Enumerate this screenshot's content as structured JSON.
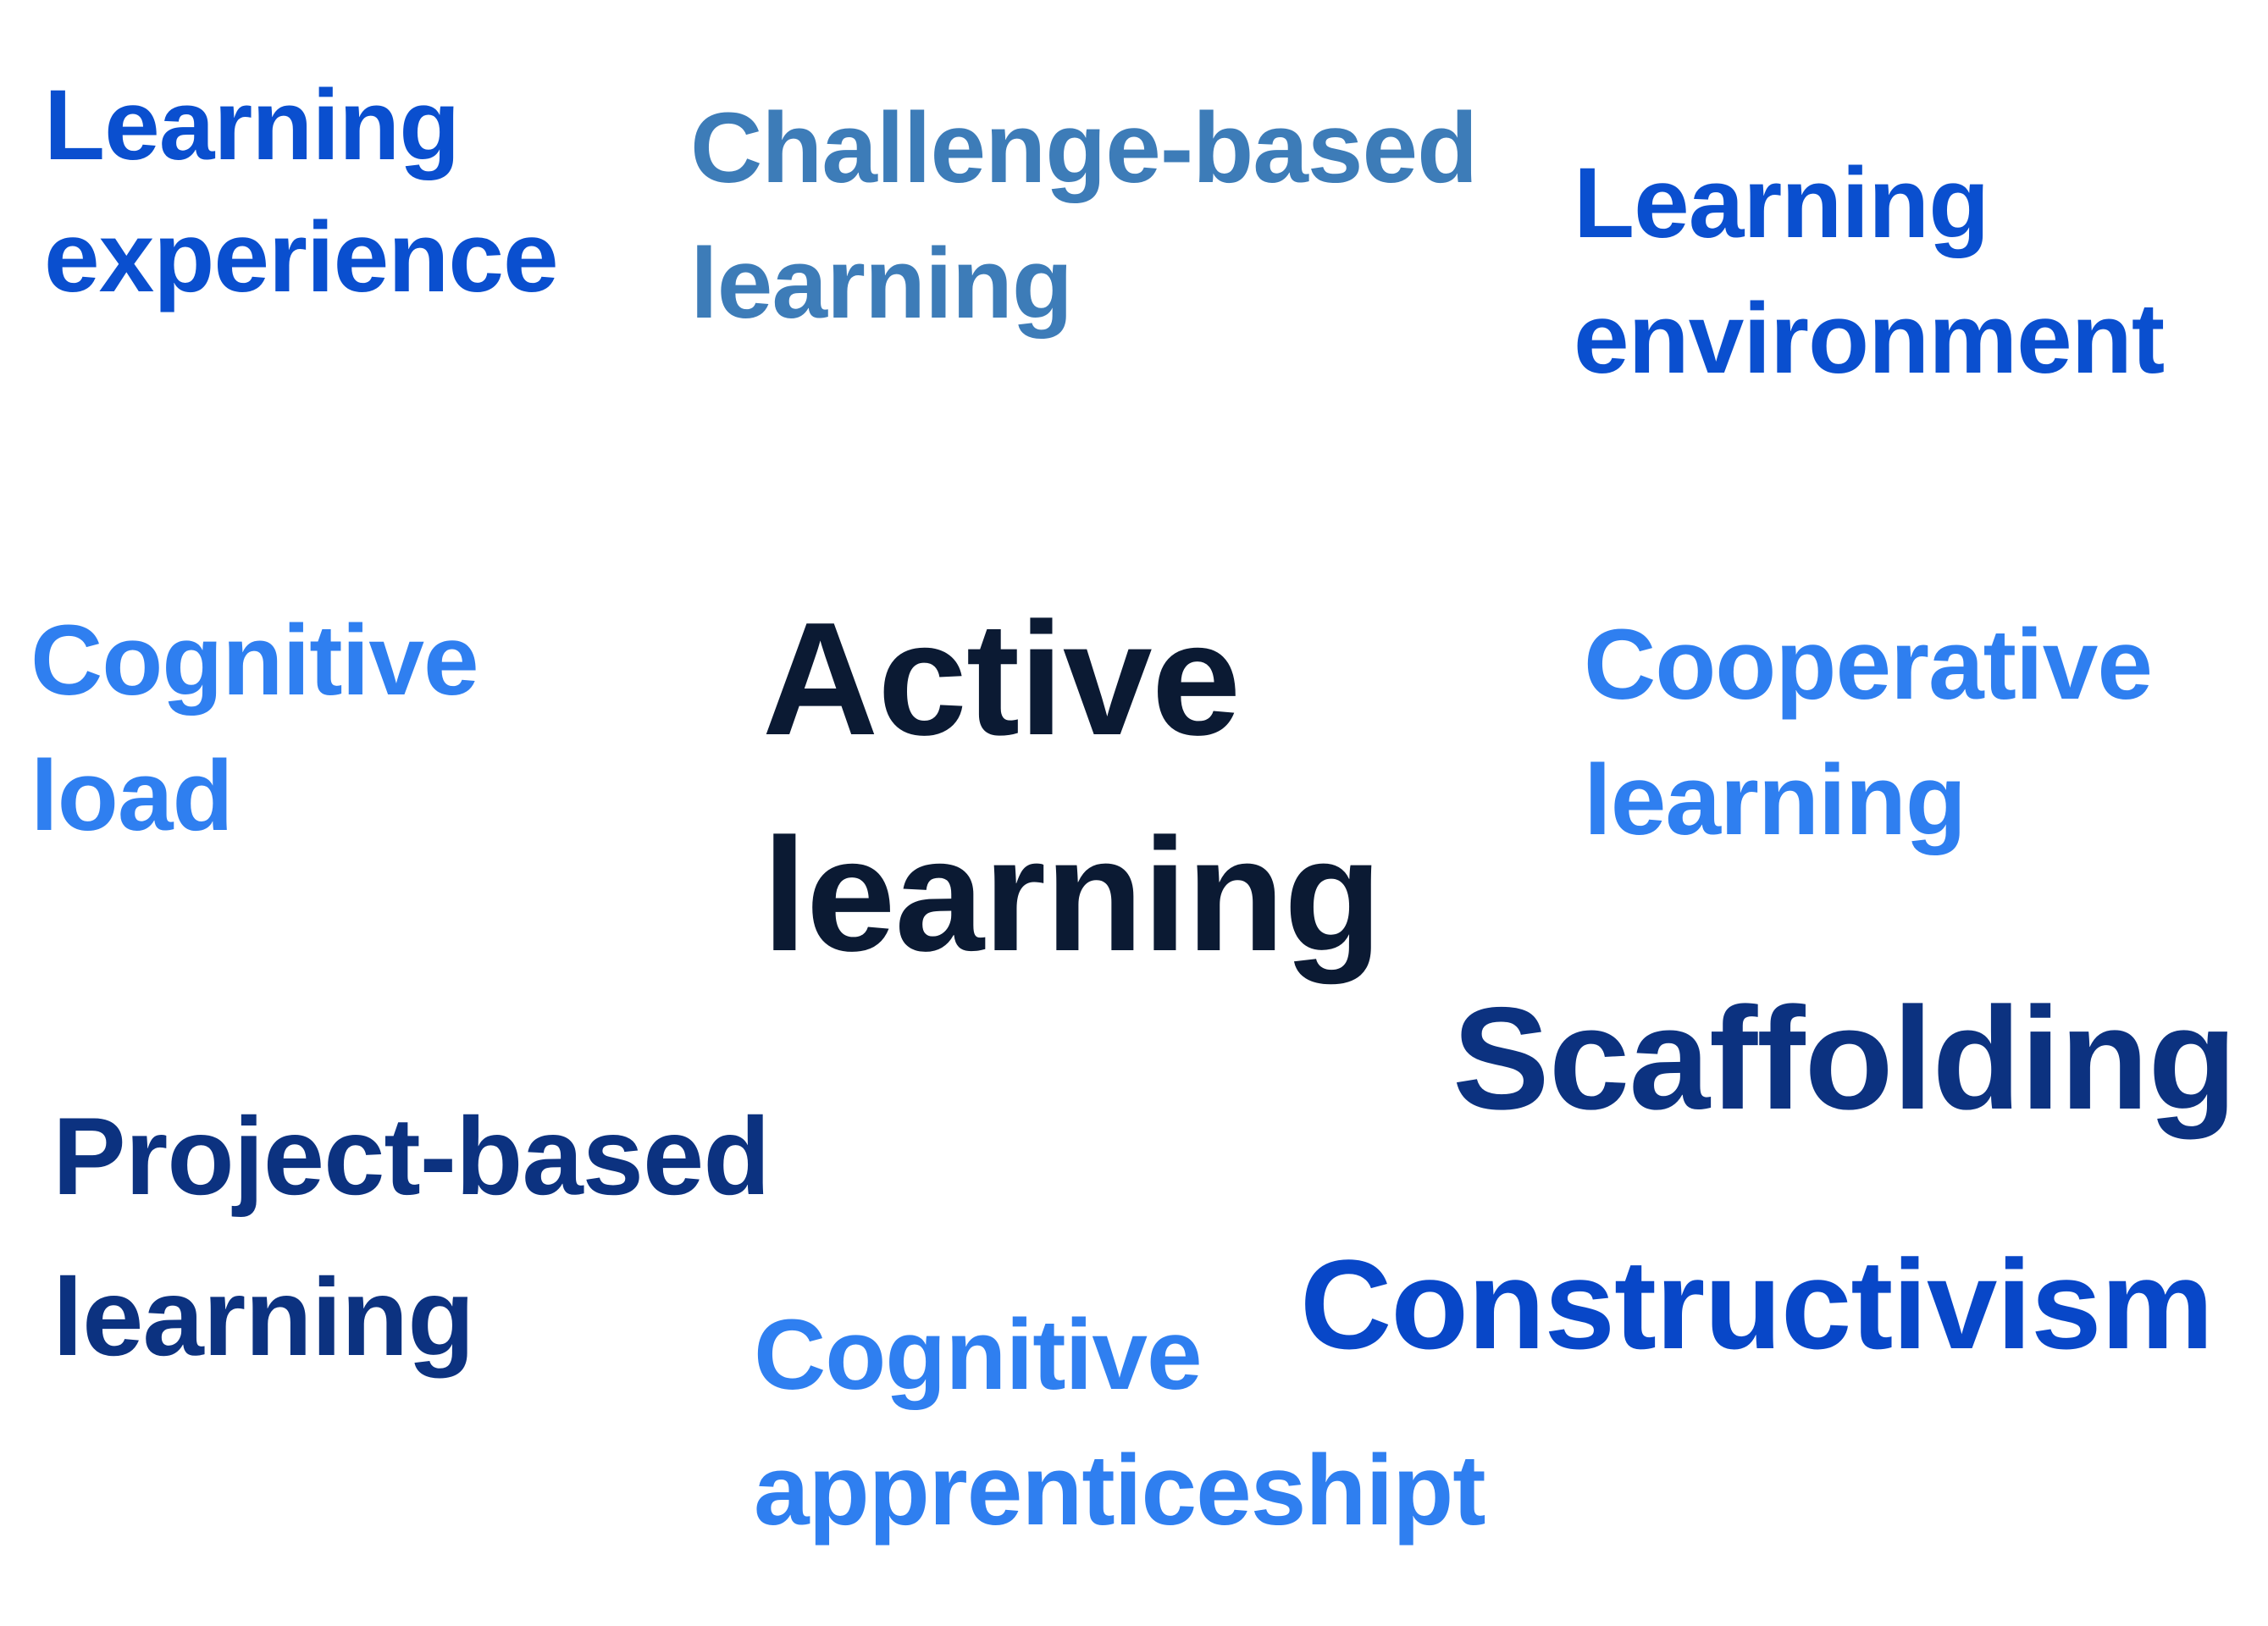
{
  "colors": {
    "background": "#ffffff",
    "blue_strong": "#0a4fcf",
    "blue_steel": "#3d7cb8",
    "blue_light": "#2f7ff0",
    "navy": "#0c3280",
    "navy_dark": "#0b1a33",
    "royal": "#0847c8"
  },
  "terms": {
    "learning_experience": {
      "line1": "Learning",
      "line2": "experience"
    },
    "challenge_based": {
      "line1": "Challenge-based",
      "line2": "learning"
    },
    "learning_environment": {
      "line1": "Learning",
      "line2": "environment"
    },
    "cognitive_load": {
      "line1": "Cognitive",
      "line2": "load"
    },
    "active_learning": {
      "line1": "Active",
      "line2": "learning"
    },
    "cooperative_learning": {
      "line1": "Cooperative",
      "line2": "learning"
    },
    "scaffolding": {
      "line1": "Scaffolding"
    },
    "project_based": {
      "line1": "Project-based",
      "line2": "learning"
    },
    "constructivism": {
      "line1": "Constructivism"
    },
    "cognitive_apprenticeship": {
      "line1": "Cognitive",
      "line2": "apprenticeshipt"
    }
  }
}
